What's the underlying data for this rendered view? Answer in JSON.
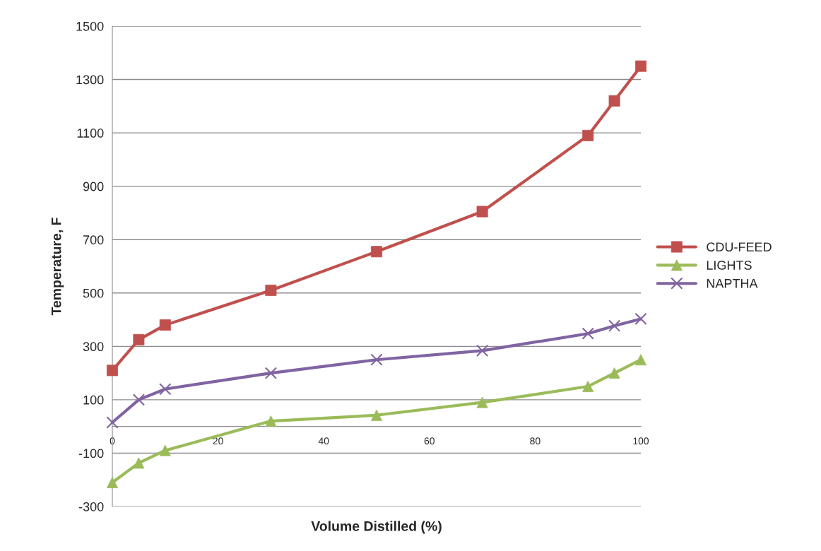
{
  "chart_data": {
    "type": "line",
    "xlabel": "Volume Distilled (%)",
    "ylabel": "Temperature, F",
    "x": [
      0,
      5,
      10,
      30,
      50,
      70,
      90,
      95,
      100
    ],
    "series": [
      {
        "name": "CDU-FEED",
        "color": "#c0504d",
        "marker": "square",
        "values": [
          210,
          325,
          380,
          510,
          655,
          805,
          1090,
          1220,
          1350
        ]
      },
      {
        "name": "LIGHTS",
        "color": "#9bbb59",
        "marker": "triangle",
        "values": [
          -210,
          -137,
          -90,
          20,
          42,
          90,
          150,
          200,
          250
        ]
      },
      {
        "name": "NAPTHA",
        "color": "#8064a2",
        "marker": "cross",
        "values": [
          15,
          100,
          140,
          200,
          250,
          284,
          348,
          377,
          403
        ]
      }
    ],
    "xlim": [
      0,
      100
    ],
    "xticks": [
      0,
      20,
      40,
      60,
      80,
      100
    ],
    "ylim": [
      -300,
      1500
    ],
    "yticks": [
      -300,
      -100,
      100,
      300,
      500,
      700,
      900,
      1100,
      1300,
      1500
    ],
    "grid": "y",
    "legend": "right",
    "line_style": "solid"
  }
}
